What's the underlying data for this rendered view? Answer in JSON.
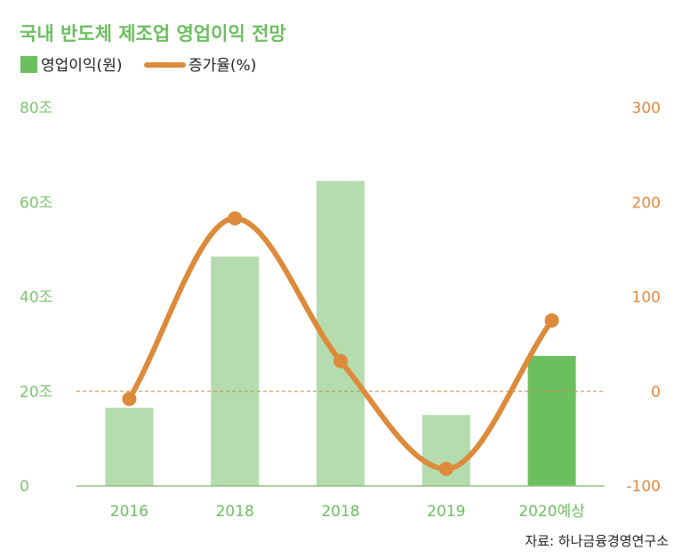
{
  "chart_data": {
    "type": "bar+line",
    "title": "국내 반도체 제조업 영업이익 전망",
    "categories": [
      "2016",
      "2018",
      "2018",
      "2019",
      "2020예상"
    ],
    "series": [
      {
        "name": "영업이익(원)",
        "type": "bar",
        "axis": "left",
        "values": [
          16.5,
          48.5,
          64.5,
          15.0,
          27.5
        ],
        "colors": [
          "#b5dcae",
          "#b5dcae",
          "#b5dcae",
          "#b5dcae",
          "#6cbf5f"
        ]
      },
      {
        "name": "증가율(%)",
        "type": "line",
        "axis": "right",
        "values": [
          -8,
          183,
          32,
          -82,
          75
        ],
        "color": "#dd8a3a"
      }
    ],
    "y_left": {
      "min": 0,
      "max": 80,
      "ticks": [
        0,
        20,
        40,
        60,
        80
      ],
      "tick_labels": [
        "0",
        "20조",
        "40조",
        "60조",
        "80조"
      ]
    },
    "y_right": {
      "min": -100,
      "max": 300,
      "ticks": [
        -100,
        0,
        100,
        200,
        300
      ],
      "tick_labels": [
        "-100",
        "0",
        "100",
        "200",
        "300"
      ]
    },
    "zero_reference_line": true,
    "legend": {
      "position": "top-left"
    },
    "grid": false
  },
  "source": "자료: 하나금융경영연구소"
}
